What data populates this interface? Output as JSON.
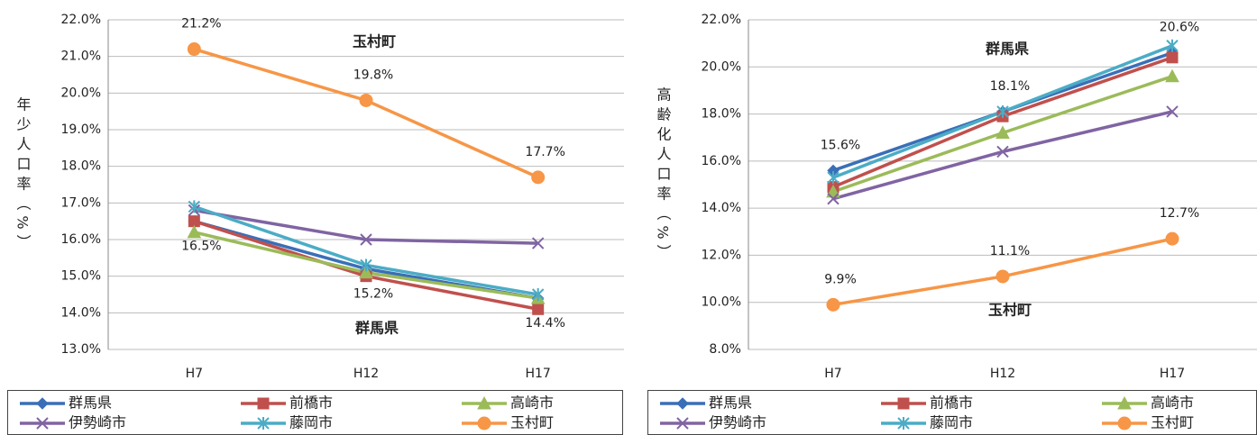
{
  "chart_data": [
    {
      "type": "line",
      "y_label": "年少人口率（%）",
      "categories": [
        "H7",
        "H12",
        "H17"
      ],
      "ylim": [
        13,
        22
      ],
      "yticks": [
        {
          "value": 13,
          "label": "13.0%"
        },
        {
          "value": 14,
          "label": "14.0%"
        },
        {
          "value": 15,
          "label": "15.0%"
        },
        {
          "value": 16,
          "label": "16.0%"
        },
        {
          "value": 17,
          "label": "17.0%"
        },
        {
          "value": 18,
          "label": "18.0%"
        },
        {
          "value": 19,
          "label": "19.0%"
        },
        {
          "value": 20,
          "label": "20.0%"
        },
        {
          "value": 21,
          "label": "21.0%"
        },
        {
          "value": 22,
          "label": "22.0%"
        }
      ],
      "grid": true,
      "annotations": [
        "玉村町",
        "群馬県"
      ],
      "series": [
        {
          "name": "群馬県",
          "color": "#3a6fb7",
          "marker": "diamond",
          "values": [
            16.5,
            15.2,
            14.4
          ],
          "value_labels": [
            "16.5%",
            "15.2%",
            "14.4%"
          ]
        },
        {
          "name": "前橋市",
          "color": "#c0504d",
          "marker": "square",
          "values": [
            16.5,
            15.0,
            14.1
          ]
        },
        {
          "name": "高崎市",
          "color": "#9bbb59",
          "marker": "triangle",
          "values": [
            16.2,
            15.1,
            14.4
          ]
        },
        {
          "name": "伊勢崎市",
          "color": "#8064a2",
          "marker": "x",
          "values": [
            16.8,
            16.0,
            15.9
          ]
        },
        {
          "name": "藤岡市",
          "color": "#4bacc6",
          "marker": "star",
          "values": [
            16.9,
            15.3,
            14.5
          ]
        },
        {
          "name": "玉村町",
          "color": "#f79646",
          "marker": "circle",
          "values": [
            21.2,
            19.8,
            17.7
          ],
          "value_labels": [
            "21.2%",
            "19.8%",
            "17.7%"
          ]
        }
      ]
    },
    {
      "type": "line",
      "y_label": "高齢化人口率（%）",
      "categories": [
        "H7",
        "H12",
        "H17"
      ],
      "ylim": [
        8,
        22
      ],
      "yticks": [
        {
          "value": 8,
          "label": "8.0%"
        },
        {
          "value": 10,
          "label": "10.0%"
        },
        {
          "value": 12,
          "label": "12.0%"
        },
        {
          "value": 14,
          "label": "14.0%"
        },
        {
          "value": 16,
          "label": "16.0%"
        },
        {
          "value": 18,
          "label": "18.0%"
        },
        {
          "value": 20,
          "label": "20.0%"
        },
        {
          "value": 22,
          "label": "22.0%"
        }
      ],
      "grid": true,
      "annotations": [
        "群馬県",
        "玉村町"
      ],
      "series": [
        {
          "name": "群馬県",
          "color": "#3a6fb7",
          "marker": "diamond",
          "values": [
            15.6,
            18.1,
            20.6
          ],
          "value_labels": [
            "15.6%",
            "18.1%",
            "20.6%"
          ]
        },
        {
          "name": "前橋市",
          "color": "#c0504d",
          "marker": "square",
          "values": [
            14.9,
            17.9,
            20.4
          ]
        },
        {
          "name": "高崎市",
          "color": "#9bbb59",
          "marker": "triangle",
          "values": [
            14.7,
            17.2,
            19.6
          ]
        },
        {
          "name": "伊勢崎市",
          "color": "#8064a2",
          "marker": "x",
          "values": [
            14.4,
            16.4,
            18.1
          ]
        },
        {
          "name": "藤岡市",
          "color": "#4bacc6",
          "marker": "star",
          "values": [
            15.3,
            18.1,
            20.9
          ]
        },
        {
          "name": "玉村町",
          "color": "#f79646",
          "marker": "circle",
          "values": [
            9.9,
            11.1,
            12.7
          ],
          "value_labels": [
            "9.9%",
            "11.1%",
            "12.7%"
          ]
        }
      ]
    }
  ]
}
